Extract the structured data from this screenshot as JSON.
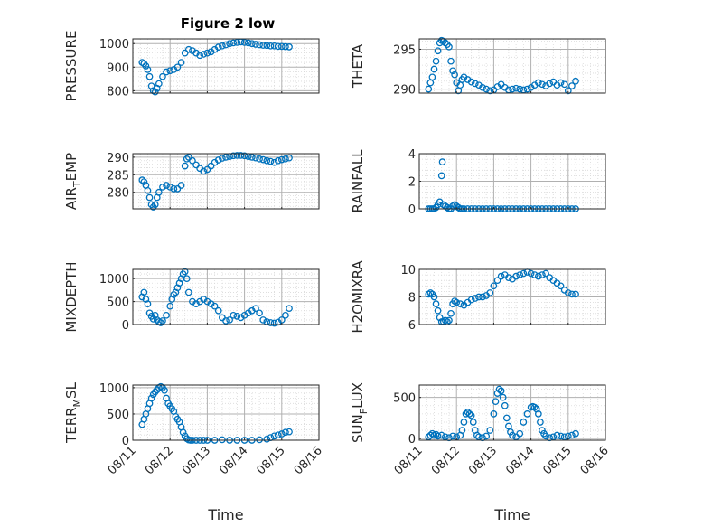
{
  "title": "Figure 2 low",
  "chart_data": [
    {
      "type": "scatter",
      "ylabel": "PRESSURE",
      "xlabel": "",
      "ylim": [
        790,
        1020
      ],
      "yticks": [
        800,
        900,
        1000
      ],
      "xticks": [
        "08/11",
        "08/12",
        "08/13",
        "08/14",
        "08/15",
        "08/16"
      ],
      "xlim": [
        0,
        5
      ],
      "grid": true,
      "x": [
        0.25,
        0.3,
        0.35,
        0.4,
        0.45,
        0.5,
        0.55,
        0.6,
        0.65,
        0.7,
        0.8,
        0.9,
        1.0,
        1.1,
        1.2,
        1.3,
        1.4,
        1.5,
        1.6,
        1.7,
        1.8,
        1.9,
        2.0,
        2.1,
        2.2,
        2.3,
        2.4,
        2.5,
        2.6,
        2.7,
        2.8,
        2.9,
        3.0,
        3.1,
        3.2,
        3.3,
        3.4,
        3.5,
        3.6,
        3.7,
        3.8,
        3.9,
        4.0,
        4.1,
        4.2
      ],
      "y": [
        920,
        915,
        905,
        890,
        860,
        820,
        800,
        795,
        810,
        830,
        860,
        880,
        885,
        890,
        900,
        920,
        960,
        975,
        970,
        960,
        950,
        955,
        960,
        965,
        975,
        985,
        990,
        995,
        1000,
        1003,
        1005,
        1007,
        1005,
        1003,
        1000,
        997,
        995,
        993,
        992,
        990,
        990,
        988,
        988,
        987,
        986
      ]
    },
    {
      "type": "scatter",
      "ylabel": "THETA",
      "xlabel": "",
      "ylim": [
        289.5,
        296.3
      ],
      "yticks": [
        290,
        295
      ],
      "xticks": [
        "08/11",
        "08/12",
        "08/13",
        "08/14",
        "08/15",
        "08/16"
      ],
      "xlim": [
        0,
        5
      ],
      "grid": true,
      "x": [
        0.25,
        0.3,
        0.35,
        0.4,
        0.45,
        0.5,
        0.55,
        0.6,
        0.65,
        0.7,
        0.75,
        0.8,
        0.85,
        0.9,
        0.95,
        1.0,
        1.05,
        1.1,
        1.15,
        1.2,
        1.3,
        1.4,
        1.5,
        1.6,
        1.7,
        1.8,
        1.9,
        2.0,
        2.1,
        2.2,
        2.3,
        2.4,
        2.5,
        2.6,
        2.7,
        2.8,
        2.9,
        3.0,
        3.1,
        3.2,
        3.3,
        3.4,
        3.5,
        3.6,
        3.7,
        3.8,
        3.9,
        4.0,
        4.1,
        4.2
      ],
      "y": [
        290.0,
        290.8,
        291.5,
        292.5,
        293.5,
        294.8,
        295.8,
        296.1,
        296.0,
        295.8,
        295.6,
        295.3,
        293.5,
        292.3,
        291.8,
        290.8,
        289.8,
        290.5,
        291.2,
        291.5,
        291.2,
        290.9,
        290.7,
        290.5,
        290.2,
        290.0,
        289.8,
        289.9,
        290.3,
        290.6,
        290.2,
        289.9,
        290.0,
        290.1,
        290.0,
        289.9,
        290.0,
        290.2,
        290.5,
        290.8,
        290.6,
        290.4,
        290.7,
        290.9,
        290.5,
        290.8,
        290.6,
        289.8,
        290.4,
        291.0
      ]
    },
    {
      "type": "scatter",
      "ylabel": "AIR_TEMP",
      "xlabel": "",
      "ylim": [
        275.3,
        291.0
      ],
      "yticks": [
        280,
        285,
        290
      ],
      "xticks": [
        "08/11",
        "08/12",
        "08/13",
        "08/14",
        "08/15",
        "08/16"
      ],
      "xlim": [
        0,
        5
      ],
      "grid": true,
      "x": [
        0.25,
        0.3,
        0.35,
        0.4,
        0.45,
        0.5,
        0.55,
        0.6,
        0.65,
        0.7,
        0.8,
        0.9,
        1.0,
        1.1,
        1.2,
        1.3,
        1.4,
        1.45,
        1.5,
        1.6,
        1.7,
        1.8,
        1.9,
        2.0,
        2.1,
        2.2,
        2.3,
        2.4,
        2.5,
        2.6,
        2.7,
        2.8,
        2.9,
        3.0,
        3.1,
        3.2,
        3.3,
        3.4,
        3.5,
        3.6,
        3.7,
        3.8,
        3.9,
        4.0,
        4.1,
        4.2
      ],
      "y": [
        283.5,
        283.0,
        282.0,
        280.5,
        278.5,
        276.5,
        275.8,
        276.5,
        278.5,
        280.0,
        281.5,
        282.0,
        281.5,
        281.0,
        281.0,
        282.0,
        287.5,
        289.5,
        290.0,
        289.0,
        287.8,
        286.8,
        286.0,
        286.5,
        287.5,
        288.5,
        289.2,
        289.7,
        290.0,
        290.2,
        290.4,
        290.5,
        290.5,
        290.4,
        290.2,
        290.0,
        289.8,
        289.5,
        289.3,
        289.0,
        288.8,
        288.5,
        289.0,
        289.3,
        289.5,
        289.8
      ]
    },
    {
      "type": "scatter",
      "ylabel": "RAINFALL",
      "xlabel": "",
      "ylim": [
        0,
        4
      ],
      "yticks": [
        0,
        2,
        4
      ],
      "xticks": [
        "08/11",
        "08/12",
        "08/13",
        "08/14",
        "08/15",
        "08/16"
      ],
      "xlim": [
        0,
        5
      ],
      "grid": true,
      "x": [
        0.25,
        0.3,
        0.35,
        0.4,
        0.45,
        0.5,
        0.55,
        0.6,
        0.62,
        0.65,
        0.7,
        0.75,
        0.8,
        0.85,
        0.9,
        0.95,
        1.0,
        1.05,
        1.1,
        1.15,
        1.2,
        1.3,
        1.4,
        1.5,
        1.6,
        1.7,
        1.8,
        1.9,
        2.0,
        2.1,
        2.2,
        2.3,
        2.4,
        2.5,
        2.6,
        2.7,
        2.8,
        2.9,
        3.0,
        3.1,
        3.2,
        3.3,
        3.4,
        3.5,
        3.6,
        3.7,
        3.8,
        3.9,
        4.0,
        4.1,
        4.2
      ],
      "y": [
        0,
        0,
        0,
        0,
        0.1,
        0.3,
        0.5,
        2.4,
        3.4,
        0.3,
        0.2,
        0.1,
        0,
        0,
        0.2,
        0.3,
        0.2,
        0.1,
        0,
        0,
        0,
        0,
        0,
        0,
        0,
        0,
        0,
        0,
        0,
        0,
        0,
        0,
        0,
        0,
        0,
        0,
        0,
        0,
        0,
        0,
        0,
        0,
        0,
        0,
        0,
        0,
        0,
        0,
        0,
        0,
        0
      ]
    },
    {
      "type": "scatter",
      "ylabel": "MIXDEPTH",
      "xlabel": "",
      "ylim": [
        0,
        1200
      ],
      "yticks": [
        0,
        500,
        1000
      ],
      "xticks": [
        "08/11",
        "08/12",
        "08/13",
        "08/14",
        "08/15",
        "08/16"
      ],
      "xlim": [
        0,
        5
      ],
      "grid": true,
      "x": [
        0.25,
        0.3,
        0.35,
        0.4,
        0.45,
        0.5,
        0.55,
        0.6,
        0.65,
        0.7,
        0.75,
        0.8,
        0.9,
        1.0,
        1.05,
        1.1,
        1.15,
        1.2,
        1.25,
        1.3,
        1.35,
        1.4,
        1.45,
        1.5,
        1.6,
        1.7,
        1.8,
        1.9,
        2.0,
        2.1,
        2.2,
        2.3,
        2.4,
        2.5,
        2.6,
        2.7,
        2.8,
        2.9,
        3.0,
        3.1,
        3.2,
        3.3,
        3.4,
        3.5,
        3.6,
        3.7,
        3.8,
        3.9,
        4.0,
        4.1,
        4.2
      ],
      "y": [
        600,
        700,
        550,
        450,
        250,
        180,
        120,
        200,
        100,
        60,
        40,
        80,
        200,
        400,
        550,
        650,
        700,
        800,
        900,
        1000,
        1100,
        1150,
        1000,
        700,
        500,
        450,
        500,
        550,
        500,
        450,
        400,
        300,
        150,
        80,
        100,
        200,
        180,
        150,
        200,
        250,
        300,
        350,
        250,
        100,
        60,
        40,
        30,
        50,
        100,
        200,
        350
      ]
    },
    {
      "type": "scatter",
      "ylabel": "H2OMIXRA",
      "xlabel": "",
      "ylim": [
        6,
        10
      ],
      "yticks": [
        6,
        8,
        10
      ],
      "xticks": [
        "08/11",
        "08/12",
        "08/13",
        "08/14",
        "08/15",
        "08/16"
      ],
      "xlim": [
        0,
        5
      ],
      "grid": true,
      "x": [
        0.25,
        0.3,
        0.35,
        0.4,
        0.45,
        0.5,
        0.55,
        0.6,
        0.65,
        0.7,
        0.75,
        0.8,
        0.85,
        0.9,
        0.95,
        1.0,
        1.1,
        1.2,
        1.3,
        1.4,
        1.5,
        1.6,
        1.7,
        1.8,
        1.9,
        2.0,
        2.1,
        2.2,
        2.3,
        2.4,
        2.5,
        2.6,
        2.7,
        2.8,
        2.9,
        3.0,
        3.1,
        3.2,
        3.3,
        3.4,
        3.5,
        3.6,
        3.7,
        3.8,
        3.9,
        4.0,
        4.1,
        4.2
      ],
      "y": [
        8.2,
        8.3,
        8.2,
        8.0,
        7.5,
        7.0,
        6.5,
        6.2,
        6.2,
        6.3,
        6.2,
        6.3,
        6.8,
        7.5,
        7.7,
        7.6,
        7.5,
        7.4,
        7.6,
        7.8,
        7.9,
        8.0,
        8.0,
        8.1,
        8.3,
        8.8,
        9.2,
        9.5,
        9.6,
        9.4,
        9.3,
        9.5,
        9.6,
        9.7,
        9.8,
        9.7,
        9.6,
        9.5,
        9.6,
        9.7,
        9.4,
        9.2,
        9.0,
        8.8,
        8.5,
        8.3,
        8.2,
        8.2
      ]
    },
    {
      "type": "scatter",
      "ylabel": "TERR_MSL",
      "xlabel": "Time",
      "ylim": [
        0,
        1050
      ],
      "yticks": [
        0,
        500,
        1000
      ],
      "xticks": [
        "08/11",
        "08/12",
        "08/13",
        "08/14",
        "08/15",
        "08/16"
      ],
      "xlim": [
        0,
        5
      ],
      "grid": true,
      "x": [
        0.25,
        0.3,
        0.35,
        0.4,
        0.45,
        0.5,
        0.55,
        0.6,
        0.65,
        0.7,
        0.75,
        0.8,
        0.85,
        0.9,
        0.95,
        1.0,
        1.05,
        1.1,
        1.15,
        1.2,
        1.25,
        1.3,
        1.35,
        1.4,
        1.45,
        1.5,
        1.55,
        1.6,
        1.7,
        1.8,
        1.9,
        2.0,
        2.2,
        2.4,
        2.6,
        2.8,
        3.0,
        3.2,
        3.4,
        3.6,
        3.7,
        3.8,
        3.9,
        4.0,
        4.1,
        4.2
      ],
      "y": [
        300,
        400,
        500,
        600,
        700,
        800,
        870,
        920,
        960,
        1000,
        1020,
        1000,
        950,
        800,
        700,
        650,
        600,
        550,
        450,
        400,
        350,
        250,
        150,
        80,
        30,
        5,
        0,
        0,
        0,
        0,
        0,
        0,
        0,
        10,
        0,
        0,
        0,
        0,
        10,
        20,
        50,
        80,
        100,
        120,
        150,
        160
      ]
    },
    {
      "type": "scatter",
      "ylabel": "SUN_FLUX",
      "xlabel": "Time",
      "ylim": [
        -20,
        650
      ],
      "yticks": [
        0,
        500
      ],
      "xticks": [
        "08/11",
        "08/12",
        "08/13",
        "08/14",
        "08/15",
        "08/16"
      ],
      "xlim": [
        0,
        5
      ],
      "grid": true,
      "x": [
        0.25,
        0.3,
        0.35,
        0.4,
        0.45,
        0.5,
        0.6,
        0.7,
        0.8,
        0.9,
        1.0,
        1.1,
        1.15,
        1.2,
        1.25,
        1.3,
        1.35,
        1.4,
        1.45,
        1.5,
        1.55,
        1.6,
        1.7,
        1.8,
        1.9,
        2.0,
        2.05,
        2.1,
        2.15,
        2.2,
        2.25,
        2.3,
        2.35,
        2.4,
        2.45,
        2.5,
        2.6,
        2.7,
        2.8,
        2.9,
        3.0,
        3.05,
        3.1,
        3.15,
        3.2,
        3.25,
        3.3,
        3.35,
        3.4,
        3.5,
        3.6,
        3.7,
        3.8,
        3.9,
        4.0,
        4.1,
        4.2
      ],
      "y": [
        20,
        40,
        60,
        40,
        50,
        30,
        40,
        20,
        10,
        30,
        20,
        40,
        100,
        200,
        300,
        320,
        300,
        280,
        200,
        100,
        40,
        20,
        10,
        30,
        100,
        300,
        450,
        550,
        600,
        580,
        500,
        400,
        250,
        150,
        80,
        40,
        20,
        60,
        200,
        300,
        380,
        390,
        380,
        360,
        300,
        200,
        100,
        60,
        30,
        10,
        20,
        40,
        30,
        20,
        30,
        40,
        60
      ]
    }
  ],
  "ylabel_parts": {
    "AIR_TEMP": [
      "AIR",
      "T",
      "EMP"
    ],
    "TERR_MSL": [
      "TERR",
      "M",
      "SL"
    ],
    "SUN_FLUX": [
      "SUN",
      "F",
      "LUX"
    ]
  },
  "colors": {
    "marker": "#0072bd",
    "axis": "#262626",
    "grid": "#b0b0b0",
    "minor_grid": "#d9d9d9"
  }
}
